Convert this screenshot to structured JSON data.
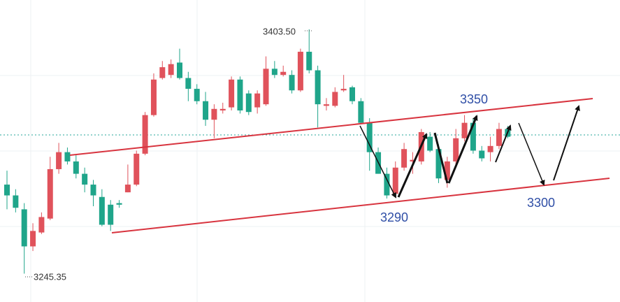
{
  "chart_data": {
    "type": "candlestick",
    "ylim": [
      3227,
      3422.5
    ],
    "up_color": "#e0525b",
    "down_color": "#1fa58a",
    "series": {
      "open": [
        3303,
        3296,
        3287,
        3263,
        3272,
        3281,
        3313,
        3324,
        3318,
        3310,
        3303,
        3295,
        3290,
        3291,
        3298,
        3303,
        3323,
        3348,
        3372,
        3374,
        3382,
        3372,
        3365,
        3357,
        3345,
        3351,
        3353,
        3371,
        3362,
        3353,
        3355,
        3378,
        3374,
        3374,
        3364,
        3389,
        3377,
        3354,
        3354,
        3364,
        3366,
        3357,
        3343,
        3324,
        3310,
        3297,
        3314,
        3318,
        3318,
        3334,
        3326,
        3306,
        3318,
        3333,
        3343,
        3325,
        3324,
        3328,
        3339
      ],
      "high": [
        3312,
        3300,
        3291,
        3278,
        3285,
        3321,
        3330,
        3327,
        3322,
        3314,
        3306,
        3300,
        3293,
        3293,
        3316,
        3325,
        3350,
        3375,
        3383,
        3384,
        3391,
        3376,
        3368,
        3363,
        3355,
        3356,
        3373,
        3373,
        3364,
        3364,
        3386,
        3383,
        3380,
        3377,
        3391,
        3403.5,
        3380,
        3359,
        3366,
        3374,
        3367,
        3359,
        3346,
        3327,
        3314,
        3318,
        3330,
        3324,
        3339,
        3337,
        3329,
        3321,
        3339,
        3348,
        3346,
        3328,
        3334,
        3343,
        3341
      ],
      "low": [
        3287,
        3285,
        3245.35,
        3260,
        3271,
        3280,
        3310,
        3316,
        3307,
        3298,
        3289,
        3276,
        3273,
        3288,
        3298,
        3302,
        3322,
        3347,
        3371,
        3372,
        3371,
        3357,
        3355,
        3341,
        3333,
        3349,
        3351,
        3349,
        3348,
        3349,
        3354,
        3372,
        3373,
        3362,
        3363,
        3375,
        3340,
        3351,
        3353,
        3363,
        3355,
        3342,
        3312,
        3310,
        3294,
        3295,
        3312,
        3310,
        3316,
        3324,
        3304,
        3301,
        3316,
        3331,
        3323,
        3318,
        3318,
        3326,
        3333
      ],
      "close": [
        3296,
        3288,
        3263,
        3273,
        3282,
        3313,
        3324,
        3318,
        3310,
        3303,
        3296,
        3277,
        3277,
        3290,
        3303,
        3323,
        3348,
        3371,
        3379,
        3381,
        3372,
        3365,
        3357,
        3345,
        3352,
        3352,
        3371,
        3351,
        3350,
        3362,
        3378,
        3374,
        3376,
        3364,
        3389,
        3377,
        3355,
        3355,
        3363,
        3365,
        3357,
        3343,
        3324,
        3310,
        3296,
        3314,
        3326,
        3319,
        3337,
        3325,
        3307,
        3318,
        3333,
        3343,
        3325,
        3320,
        3328,
        3339,
        3334
      ]
    },
    "annotations": {
      "high_label": "3403.50",
      "low_label": "3245.35",
      "resistance_label": "3350",
      "support_label": "3290",
      "target_label": "3300"
    }
  }
}
